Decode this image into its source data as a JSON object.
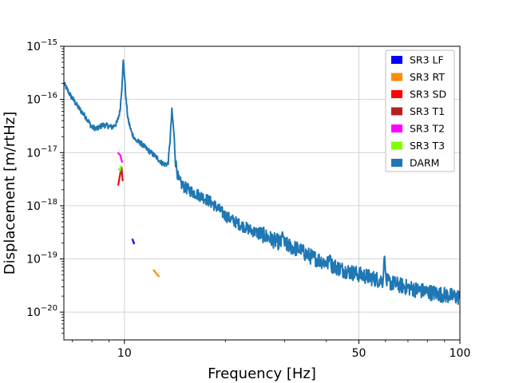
{
  "chart_data": {
    "type": "line",
    "title": "",
    "xlabel": "Frequency [Hz]",
    "ylabel": "Displacement [m/rtHz]",
    "x_scale": "log",
    "y_scale": "log",
    "xlim": [
      6.6,
      100
    ],
    "ylim": [
      3e-21,
      1e-15
    ],
    "grid": true,
    "legend_position": "top-right",
    "x_tick_labels": [
      {
        "value": 10,
        "label": "10"
      },
      {
        "value": 50,
        "label": "50"
      },
      {
        "value": 100,
        "label": "100"
      }
    ],
    "y_tick_labels": [
      {
        "value": 1e-20,
        "base": "10",
        "exp": "−20"
      },
      {
        "value": 1e-19,
        "base": "10",
        "exp": "−19"
      },
      {
        "value": 1e-18,
        "base": "10",
        "exp": "−18"
      },
      {
        "value": 1e-17,
        "base": "10",
        "exp": "−17"
      },
      {
        "value": 1e-16,
        "base": "10",
        "exp": "−16"
      },
      {
        "value": 1e-15,
        "base": "10",
        "exp": "−15"
      }
    ],
    "series": [
      {
        "name": "SR3 LF",
        "color": "#0000ff",
        "x": [
          10.55,
          10.7
        ],
        "y": [
          2.4e-19,
          1.9e-19
        ]
      },
      {
        "name": "SR3 RT",
        "color": "#ff8c00",
        "x": [
          12.2,
          12.45,
          12.7
        ],
        "y": [
          6.3e-20,
          5.3e-20,
          4.6e-20
        ]
      },
      {
        "name": "SR3 SD",
        "color": "#ff0000",
        "x": [
          9.58,
          9.68,
          9.78
        ],
        "y": [
          2.4e-18,
          3.5e-18,
          5e-18
        ]
      },
      {
        "name": "SR3 T1",
        "color": "#b22222",
        "x": [
          9.72,
          9.8,
          9.88
        ],
        "y": [
          4e-18,
          5.5e-18,
          2.9e-18
        ]
      },
      {
        "name": "SR3 T2",
        "color": "#ff00ff",
        "x": [
          9.55,
          9.72,
          9.85
        ],
        "y": [
          1e-17,
          9e-18,
          6.5e-18
        ]
      },
      {
        "name": "SR3 T3",
        "color": "#7fff00",
        "x": [
          9.6,
          9.7,
          9.78
        ],
        "y": [
          5e-18,
          4.6e-18,
          5.6e-18
        ]
      },
      {
        "name": "DARM",
        "color": "#1f77b4",
        "x": [],
        "y": [],
        "profile": [
          [
            6.6,
            2e-16
          ],
          [
            6.9,
            1.2e-16
          ],
          [
            7.3,
            7e-17
          ],
          [
            7.7,
            4.5e-17
          ],
          [
            8.0,
            3e-17
          ],
          [
            8.3,
            2.8e-17
          ],
          [
            8.6,
            3.3e-17
          ],
          [
            8.9,
            3.2e-17
          ],
          [
            9.2,
            3e-17
          ],
          [
            9.5,
            3.6e-17
          ],
          [
            9.7,
            6e-17
          ],
          [
            9.82,
            1.6e-16
          ],
          [
            9.92,
            5.3e-16
          ],
          [
            10.0,
            3e-16
          ],
          [
            10.1,
            1.1e-16
          ],
          [
            10.25,
            4.2e-17
          ],
          [
            10.5,
            2.4e-17
          ],
          [
            10.8,
            1.7e-17
          ],
          [
            11.2,
            1.5e-17
          ],
          [
            11.6,
            1.2e-17
          ],
          [
            12.0,
            1e-17
          ],
          [
            12.5,
            8e-18
          ],
          [
            12.9,
            6.5e-18
          ],
          [
            13.2,
            6e-18
          ],
          [
            13.5,
            6.2e-18
          ],
          [
            13.7,
            2e-17
          ],
          [
            13.85,
            6.2e-17
          ],
          [
            14.0,
            3e-17
          ],
          [
            14.2,
            7e-18
          ],
          [
            14.5,
            3e-18
          ],
          [
            15.0,
            2.3e-18
          ],
          [
            16.0,
            1.8e-18
          ],
          [
            17.0,
            1.5e-18
          ],
          [
            18.0,
            1.2e-18
          ],
          [
            19.0,
            9e-19
          ],
          [
            20.0,
            6.5e-19
          ],
          [
            22.0,
            4.5e-19
          ],
          [
            24.0,
            3.4e-19
          ],
          [
            26.0,
            2.8e-19
          ],
          [
            28.0,
            2.2e-19
          ],
          [
            30.0,
            1.9e-19
          ],
          [
            33.0,
            1.5e-19
          ],
          [
            36.0,
            1.1e-19
          ],
          [
            40.0,
            8.5e-20
          ],
          [
            44.0,
            6.5e-20
          ],
          [
            48.0,
            5.5e-20
          ],
          [
            52.0,
            4.8e-20
          ],
          [
            56.0,
            4.2e-20
          ],
          [
            60.0,
            3.8e-20
          ],
          [
            65.0,
            3.3e-20
          ],
          [
            70.0,
            2.9e-20
          ],
          [
            75.0,
            2.6e-20
          ],
          [
            80.0,
            2.4e-20
          ],
          [
            90.0,
            2.1e-20
          ],
          [
            100.0,
            1.9e-20
          ]
        ],
        "peaks": [
          {
            "x": 29.6,
            "y": 3.3e-19
          },
          {
            "x": 41.0,
            "y": 1.2e-19
          },
          {
            "x": 59.6,
            "y": 1.2e-19
          },
          {
            "x": 33.5,
            "y": 1.3e-19
          }
        ]
      }
    ]
  }
}
